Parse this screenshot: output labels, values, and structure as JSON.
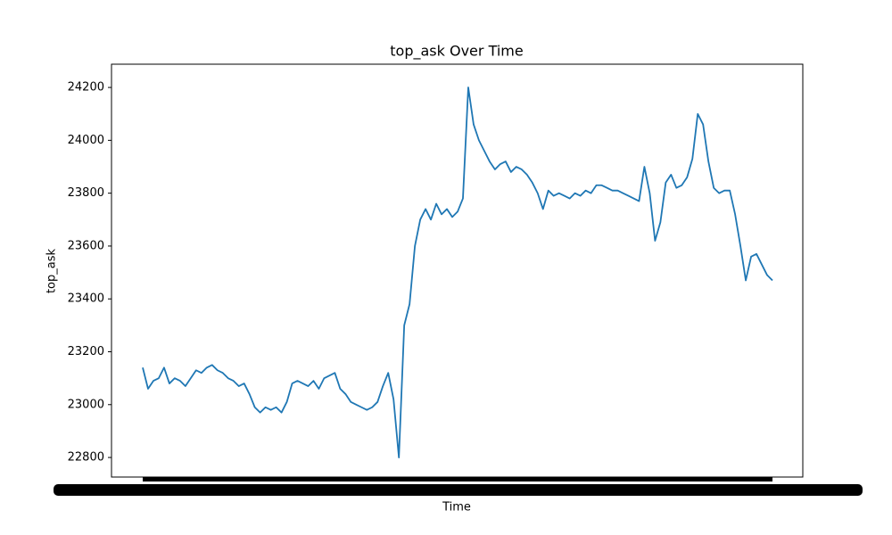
{
  "chart_data": {
    "type": "line",
    "title": "top_ask Over Time",
    "x_label": "Time",
    "y_label": "top_ask",
    "categories": [
      null,
      null,
      null,
      null,
      null,
      null,
      null,
      null,
      null,
      null,
      null,
      null,
      null,
      null,
      null,
      null,
      null,
      null,
      null,
      null,
      null,
      null,
      null,
      null,
      null,
      null,
      null,
      null,
      null,
      null,
      null,
      null,
      null,
      null,
      null,
      null,
      null,
      null,
      null,
      null,
      null,
      null,
      null,
      null,
      null,
      null,
      null,
      null,
      null,
      null,
      null,
      null,
      null,
      null,
      null,
      null,
      null,
      null,
      null,
      null,
      null,
      null,
      null,
      null,
      null,
      null,
      null,
      null,
      null,
      null,
      null,
      null,
      null,
      null,
      null,
      null,
      null,
      null,
      null,
      null,
      null,
      null,
      null,
      null,
      null,
      null,
      null,
      null,
      null,
      null,
      null,
      null,
      null,
      null,
      null,
      null,
      null,
      null,
      null,
      null,
      null,
      null,
      null,
      null,
      null,
      null,
      null,
      null,
      null,
      null,
      null,
      null,
      null,
      null,
      null,
      null,
      null,
      null,
      null
    ],
    "series": [
      {
        "name": "top_ask",
        "color": "#1f77b4",
        "values": [
          23140,
          23060,
          23090,
          23100,
          23140,
          23080,
          23100,
          23090,
          23070,
          23100,
          23130,
          23120,
          23140,
          23150,
          23130,
          23120,
          23100,
          23090,
          23070,
          23080,
          23040,
          22990,
          22970,
          22990,
          22980,
          22990,
          22970,
          23010,
          23080,
          23090,
          23080,
          23070,
          23090,
          23060,
          23100,
          23110,
          23120,
          23060,
          23040,
          23010,
          23000,
          22990,
          22980,
          22990,
          23010,
          23070,
          23120,
          23020,
          22800,
          23300,
          23380,
          23600,
          23700,
          23740,
          23700,
          23760,
          23720,
          23740,
          23710,
          23730,
          23780,
          24200,
          24060,
          24000,
          23960,
          23920,
          23890,
          23910,
          23920,
          23880,
          23900,
          23890,
          23870,
          23840,
          23800,
          23740,
          23810,
          23790,
          23800,
          23790,
          23780,
          23800,
          23790,
          23810,
          23800,
          23830,
          23830,
          23820,
          23810,
          23810,
          23800,
          23790,
          23780,
          23770,
          23900,
          23800,
          23620,
          23690,
          23840,
          23870,
          23820,
          23830,
          23860,
          23930,
          24100,
          24060,
          23920,
          23820,
          23800,
          23810,
          23810,
          23720,
          23600,
          23470,
          23560,
          23570,
          23530,
          23490,
          23470
        ]
      }
    ],
    "ylim": [
      22726,
      24288
    ],
    "yticks": [
      22800,
      23000,
      23200,
      23400,
      23600,
      23800,
      24000,
      24200
    ]
  }
}
